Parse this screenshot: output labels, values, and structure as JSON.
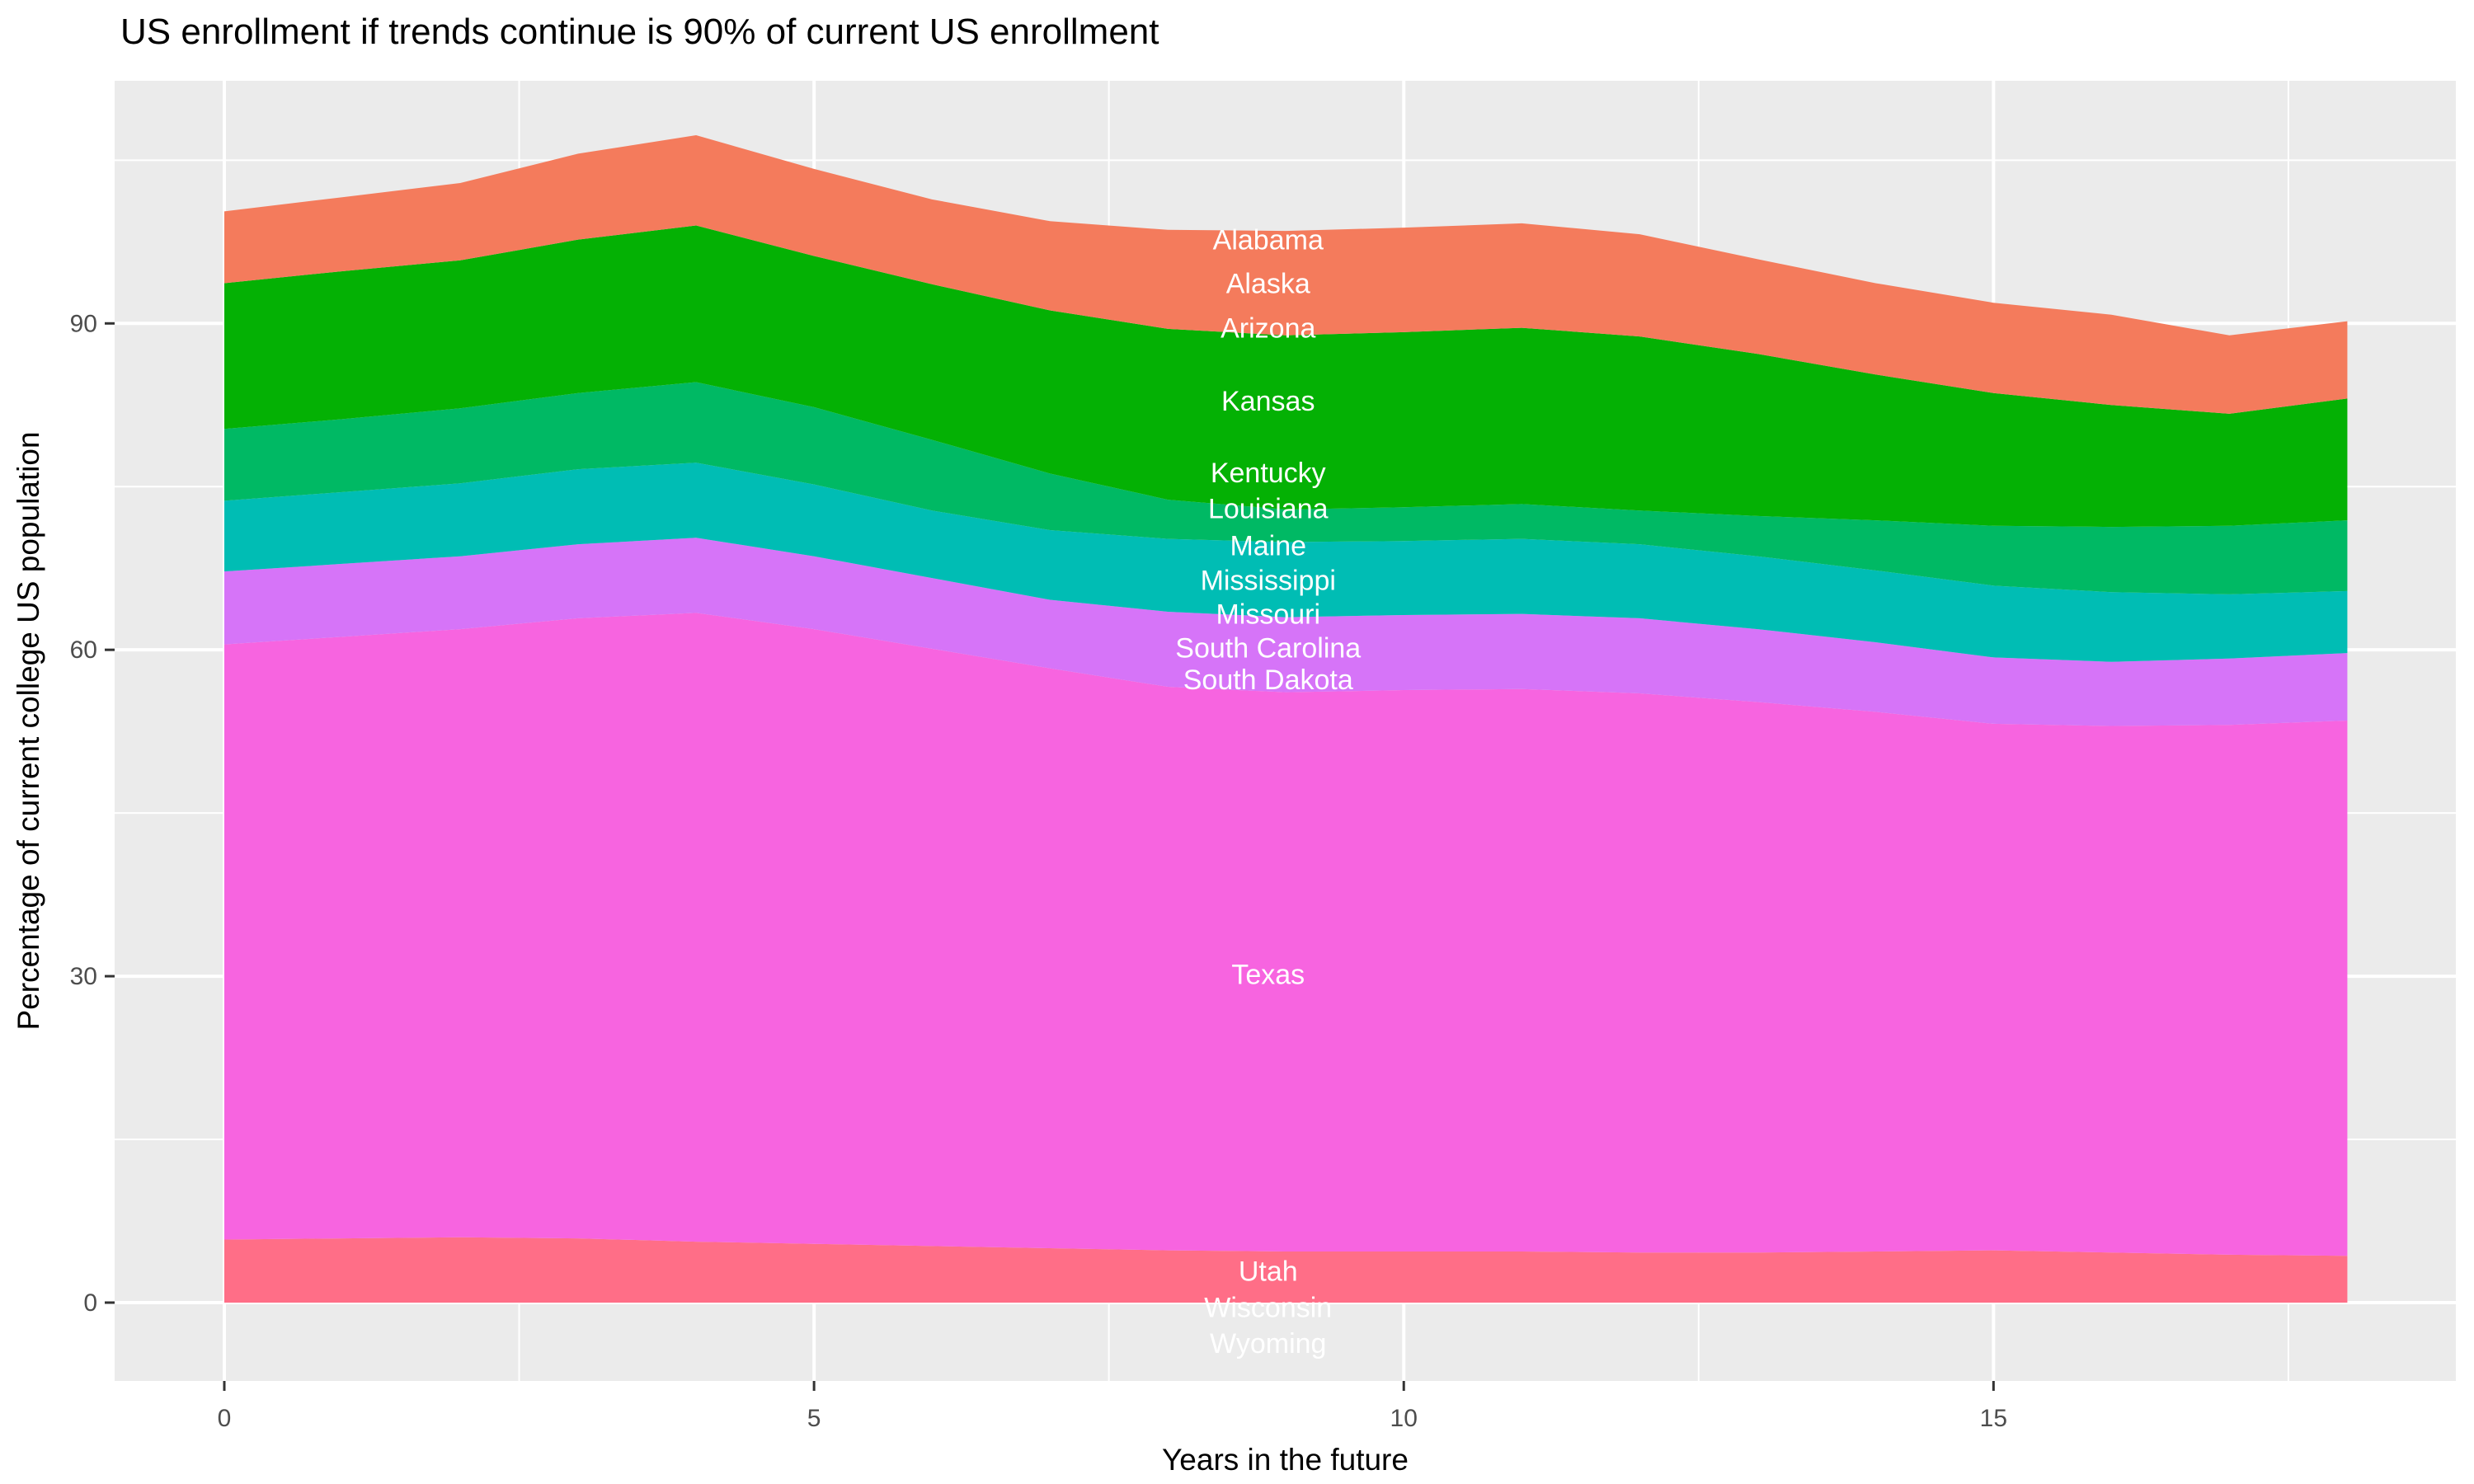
{
  "page": {
    "background": "#FFFFFF"
  },
  "chart_data": {
    "type": "area",
    "variant": "stacked-area",
    "title": "US enrollment if trends continue is 90% of current US enrollment",
    "xlabel": "Years in the future",
    "ylabel": "Percentage of current college US population",
    "panel_bg": "#EBEBEB",
    "gridline_color": "#FFFFFF",
    "tick_color": "#333333",
    "tick_label_color": "#4D4D4D",
    "state_label_color": "#FFFFFF",
    "legend": "none",
    "grid": "on",
    "x": [
      0,
      1,
      2,
      3,
      4,
      5,
      6,
      7,
      8,
      9,
      10,
      11,
      12,
      13,
      14,
      15,
      16,
      17,
      18
    ],
    "x_ticks": {
      "values": [
        0,
        5,
        10,
        15
      ],
      "labels": [
        "0",
        "5",
        "10",
        "15"
      ],
      "minor": [
        2.5,
        7.5,
        12.5,
        17.5
      ]
    },
    "y_ticks": {
      "values": [
        0,
        30,
        60,
        90
      ],
      "labels": [
        "0",
        "30",
        "60",
        "90"
      ],
      "minor": [
        15,
        45,
        75,
        105
      ]
    },
    "x_range_panel": [
      -0.93,
      18.92
    ],
    "y_range_panel": [
      -7.2,
      112.3
    ],
    "bands": [
      {
        "name": "utah-wisconsin-wyoming",
        "states": [
          "Utah",
          "Wisconsin",
          "Wyoming"
        ],
        "color": "#FF6E87",
        "top": [
          5.8,
          5.9,
          6.0,
          5.9,
          5.6,
          5.4,
          5.2,
          5.0,
          4.8,
          4.7,
          4.7,
          4.7,
          4.6,
          4.6,
          4.7,
          4.8,
          4.6,
          4.4,
          4.3
        ]
      },
      {
        "name": "texas",
        "states": [
          "Texas"
        ],
        "color": "#F764E0",
        "top": [
          60.5,
          61.2,
          61.9,
          62.9,
          63.4,
          61.9,
          60.1,
          58.3,
          56.6,
          56.1,
          56.3,
          56.4,
          56.0,
          55.2,
          54.3,
          53.2,
          53.0,
          53.1,
          53.5
        ]
      },
      {
        "name": "south-carolina-south-dakota",
        "states": [
          "South Carolina",
          "South Dakota"
        ],
        "color": "#D674F8",
        "top": [
          67.2,
          67.9,
          68.6,
          69.7,
          70.3,
          68.6,
          66.6,
          64.6,
          63.5,
          63.0,
          63.2,
          63.3,
          62.9,
          61.9,
          60.7,
          59.3,
          58.9,
          59.2,
          59.7
        ]
      },
      {
        "name": "mississippi-missouri",
        "states": [
          "Mississippi",
          "Missouri"
        ],
        "color": "#00BDB4",
        "top": [
          73.7,
          74.5,
          75.3,
          76.6,
          77.2,
          75.2,
          72.8,
          71.0,
          70.2,
          69.9,
          70.0,
          70.2,
          69.7,
          68.6,
          67.3,
          65.9,
          65.3,
          65.1,
          65.4
        ]
      },
      {
        "name": "kentucky-louisiana-maine",
        "states": [
          "Kentucky",
          "Louisiana",
          "Maine"
        ],
        "color": "#00B964",
        "top": [
          80.3,
          81.2,
          82.2,
          83.6,
          84.6,
          82.3,
          79.3,
          76.2,
          73.8,
          72.9,
          73.1,
          73.4,
          72.8,
          72.3,
          71.9,
          71.4,
          71.3,
          71.4,
          71.9
        ]
      },
      {
        "name": "kansas",
        "states": [
          "Kansas"
        ],
        "color": "#04B104",
        "top": [
          93.7,
          94.8,
          95.8,
          97.7,
          99.0,
          96.2,
          93.6,
          91.2,
          89.5,
          88.9,
          89.2,
          89.6,
          88.8,
          87.2,
          85.3,
          83.6,
          82.5,
          81.7,
          83.1
        ]
      },
      {
        "name": "alabama-alaska-arizona",
        "states": [
          "Alabama",
          "Alaska",
          "Arizona"
        ],
        "color": "#F47B5C",
        "top": [
          100.3,
          101.6,
          102.9,
          105.6,
          107.3,
          104.2,
          101.4,
          99.4,
          98.6,
          98.5,
          98.8,
          99.2,
          98.2,
          95.9,
          93.7,
          91.9,
          90.8,
          88.9,
          90.2
        ]
      }
    ],
    "labels": [
      {
        "text": "Alabama",
        "x": 8.85,
        "y": 97.7
      },
      {
        "text": "Alaska",
        "x": 8.85,
        "y": 93.7
      },
      {
        "text": "Arizona",
        "x": 8.85,
        "y": 89.6
      },
      {
        "text": "Kansas",
        "x": 8.85,
        "y": 82.9
      },
      {
        "text": "Kentucky",
        "x": 8.85,
        "y": 76.3
      },
      {
        "text": "Louisiana",
        "x": 8.85,
        "y": 73.0
      },
      {
        "text": "Maine",
        "x": 8.85,
        "y": 69.6
      },
      {
        "text": "Mississippi",
        "x": 8.85,
        "y": 66.4
      },
      {
        "text": "Missouri",
        "x": 8.85,
        "y": 63.3
      },
      {
        "text": "South Carolina",
        "x": 8.85,
        "y": 60.2
      },
      {
        "text": "South Dakota",
        "x": 8.85,
        "y": 57.3
      },
      {
        "text": "Texas",
        "x": 8.85,
        "y": 30.2
      },
      {
        "text": "Utah",
        "x": 8.85,
        "y": 2.9
      },
      {
        "text": "Wisconsin",
        "x": 8.85,
        "y": -0.4
      },
      {
        "text": "Wyoming",
        "x": 8.85,
        "y": -3.7
      }
    ]
  }
}
